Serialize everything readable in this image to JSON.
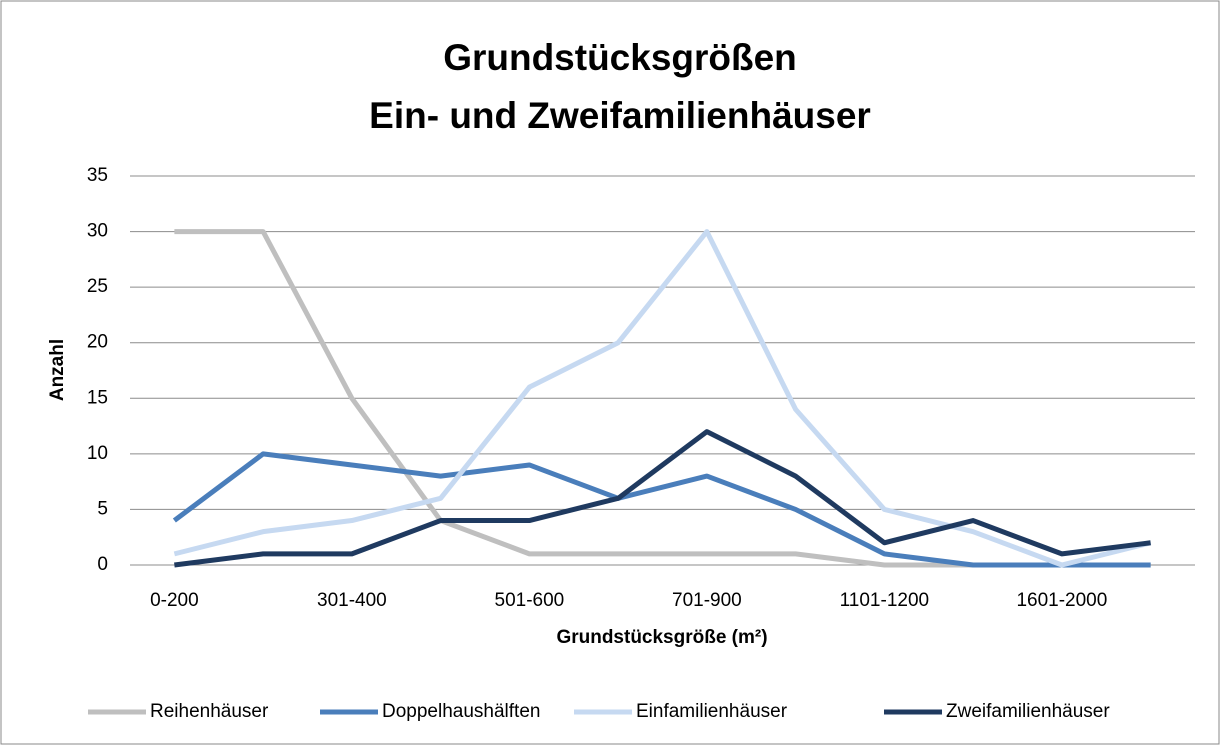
{
  "chart_data": {
    "type": "line",
    "title": "Grundstücksgrößen",
    "subtitle": "Ein- und Zweifamilienhäuser",
    "x_label": "Grundstücksgröße (m²)",
    "y_label": "Anzahl",
    "categories": [
      "0-200",
      null,
      "301-400",
      null,
      "501-600",
      null,
      "701-900",
      null,
      "1101-1200",
      null,
      "1601-2000",
      null
    ],
    "series": [
      {
        "name": "Reihenhäuser",
        "color": "#bfbfbf",
        "values": [
          30,
          30,
          15,
          4,
          1,
          1,
          1,
          1,
          0,
          0,
          0,
          0
        ]
      },
      {
        "name": "Doppelhaushälften",
        "color": "#4a7ebb",
        "values": [
          4,
          10,
          9,
          8,
          9,
          6,
          8,
          5,
          1,
          0,
          0,
          0
        ]
      },
      {
        "name": "Einfamilienhäuser",
        "color": "#c6d9f1",
        "values": [
          1,
          3,
          4,
          6,
          16,
          20,
          30,
          14,
          5,
          3,
          0,
          2
        ]
      },
      {
        "name": "Zweifamilienhäuser",
        "color": "#1f3a60",
        "values": [
          0,
          1,
          1,
          4,
          4,
          6,
          12,
          8,
          2,
          4,
          1,
          2
        ]
      }
    ],
    "ylim": [
      0,
      35
    ],
    "yticks": [
      0,
      5,
      10,
      15,
      20,
      25,
      30,
      35
    ],
    "grid": true,
    "legend": "bottom"
  }
}
